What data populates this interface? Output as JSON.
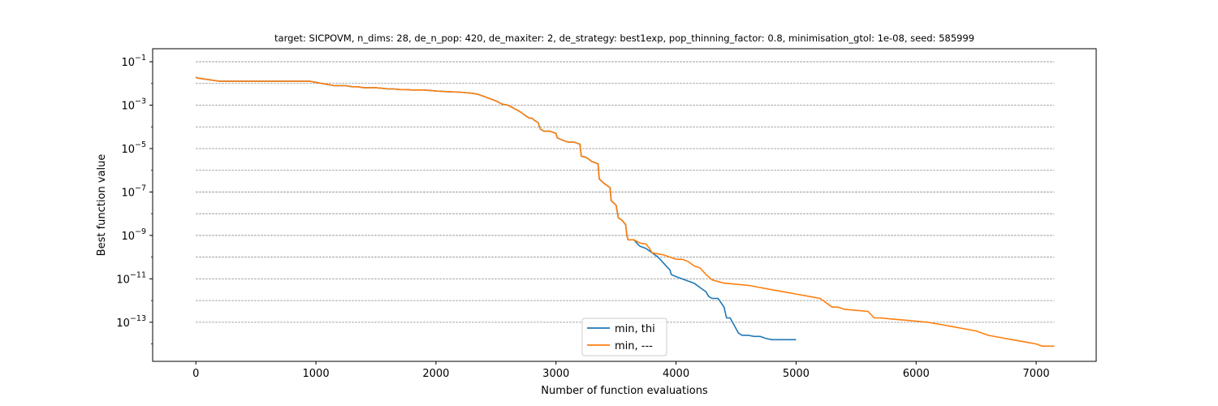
{
  "chart_data": {
    "type": "line",
    "title": "target: SICPOVM, n_dims: 28, de_n_pop: 420, de_maxiter: 2, de_strategy: best1exp, pop_thinning_factor: 0.8, minimisation_gtol: 1e-08, seed: 585999",
    "xlabel": "Number of function evaluations",
    "ylabel": "Best function value",
    "yscale": "log",
    "xlim": [
      -360,
      7500
    ],
    "ylim_log10": [
      -14.8,
      -0.4
    ],
    "x_ticks": [
      0,
      1000,
      2000,
      3000,
      4000,
      5000,
      6000,
      7000
    ],
    "y_tick_exponents": [
      -1,
      -3,
      -5,
      -7,
      -9,
      -11,
      -13
    ],
    "y_gridlines_log10": [
      -1,
      -2,
      -3,
      -4,
      -5,
      -6,
      -7,
      -8,
      -9,
      -10,
      -11,
      -12,
      -13
    ],
    "grid": "horizontal dashed",
    "legend_position": "bottom-center",
    "series": [
      {
        "name": "min, thi",
        "color": "#1f77b4",
        "x": [
          0,
          10,
          200,
          950,
          1000,
          1050,
          1100,
          1150,
          1250,
          1300,
          1350,
          1400,
          1450,
          1500,
          1550,
          1600,
          1650,
          1700,
          1750,
          1800,
          1900,
          2000,
          2100,
          2200,
          2300,
          2350,
          2400,
          2450,
          2500,
          2550,
          2600,
          2650,
          2700,
          2750,
          2780,
          2800,
          2820,
          2850,
          2870,
          2900,
          2950,
          3000,
          3010,
          3050,
          3100,
          3150,
          3200,
          3210,
          3250,
          3300,
          3350,
          3360,
          3400,
          3450,
          3460,
          3500,
          3520,
          3550,
          3580,
          3590,
          3600,
          3650,
          3680,
          3700,
          3750,
          3800,
          3850,
          3900,
          3950,
          3960,
          4000,
          4050,
          4100,
          4150,
          4200,
          4250,
          4270,
          4300,
          4350,
          4400,
          4420,
          4450,
          4500,
          4520,
          4550,
          4600,
          4650,
          4700,
          4750,
          4800,
          4850,
          4900,
          5000
        ],
        "y_log10": [
          -1.7,
          -1.75,
          -1.9,
          -1.9,
          -1.95,
          -2.0,
          -2.05,
          -2.1,
          -2.1,
          -2.15,
          -2.15,
          -2.2,
          -2.2,
          -2.2,
          -2.22,
          -2.25,
          -2.25,
          -2.28,
          -2.28,
          -2.3,
          -2.3,
          -2.35,
          -2.38,
          -2.4,
          -2.45,
          -2.5,
          -2.6,
          -2.7,
          -2.8,
          -2.95,
          -3.0,
          -3.15,
          -3.3,
          -3.5,
          -3.6,
          -3.6,
          -3.7,
          -3.8,
          -4.1,
          -4.2,
          -4.2,
          -4.3,
          -4.5,
          -4.6,
          -4.7,
          -4.7,
          -4.8,
          -5.35,
          -5.4,
          -5.6,
          -5.7,
          -6.4,
          -6.6,
          -6.8,
          -7.4,
          -7.6,
          -8.2,
          -8.3,
          -8.5,
          -9.0,
          -9.2,
          -9.2,
          -9.4,
          -9.5,
          -9.6,
          -9.8,
          -10.0,
          -10.3,
          -10.6,
          -10.8,
          -10.9,
          -11.0,
          -11.1,
          -11.2,
          -11.4,
          -11.6,
          -11.8,
          -11.9,
          -11.9,
          -12.3,
          -12.8,
          -12.8,
          -13.3,
          -13.5,
          -13.6,
          -13.6,
          -13.65,
          -13.65,
          -13.75,
          -13.8,
          -13.8,
          -13.8,
          -13.8
        ]
      },
      {
        "name": "min, ---",
        "color": "#ff7f0e",
        "x": [
          0,
          10,
          200,
          950,
          1000,
          1050,
          1100,
          1150,
          1250,
          1300,
          1350,
          1400,
          1450,
          1500,
          1550,
          1600,
          1650,
          1700,
          1750,
          1800,
          1900,
          2000,
          2100,
          2200,
          2300,
          2350,
          2400,
          2450,
          2500,
          2550,
          2600,
          2650,
          2700,
          2750,
          2780,
          2800,
          2820,
          2850,
          2870,
          2900,
          2950,
          3000,
          3010,
          3050,
          3100,
          3150,
          3200,
          3210,
          3250,
          3300,
          3350,
          3360,
          3400,
          3450,
          3460,
          3500,
          3520,
          3550,
          3580,
          3590,
          3600,
          3650,
          3700,
          3750,
          3780,
          3800,
          3850,
          3900,
          3950,
          4000,
          4050,
          4100,
          4150,
          4200,
          4250,
          4300,
          4400,
          4500,
          4600,
          4700,
          4800,
          4900,
          5000,
          5100,
          5200,
          5250,
          5300,
          5350,
          5400,
          5500,
          5600,
          5650,
          5700,
          5800,
          5900,
          6000,
          6100,
          6200,
          6300,
          6400,
          6500,
          6600,
          6700,
          6800,
          6900,
          7000,
          7050,
          7100,
          7150
        ],
        "y_log10": [
          -1.7,
          -1.75,
          -1.9,
          -1.9,
          -1.95,
          -2.0,
          -2.05,
          -2.1,
          -2.1,
          -2.15,
          -2.15,
          -2.2,
          -2.2,
          -2.2,
          -2.22,
          -2.25,
          -2.25,
          -2.28,
          -2.28,
          -2.3,
          -2.3,
          -2.35,
          -2.38,
          -2.4,
          -2.45,
          -2.5,
          -2.6,
          -2.7,
          -2.8,
          -2.95,
          -3.0,
          -3.15,
          -3.3,
          -3.5,
          -3.6,
          -3.6,
          -3.7,
          -3.8,
          -4.1,
          -4.2,
          -4.2,
          -4.3,
          -4.5,
          -4.6,
          -4.7,
          -4.7,
          -4.8,
          -5.35,
          -5.4,
          -5.6,
          -5.7,
          -6.4,
          -6.6,
          -6.8,
          -7.4,
          -7.6,
          -8.2,
          -8.3,
          -8.5,
          -9.0,
          -9.2,
          -9.2,
          -9.35,
          -9.4,
          -9.6,
          -9.8,
          -9.85,
          -9.9,
          -10.0,
          -10.1,
          -10.1,
          -10.2,
          -10.4,
          -10.5,
          -10.8,
          -11.05,
          -11.2,
          -11.25,
          -11.3,
          -11.4,
          -11.5,
          -11.6,
          -11.7,
          -11.8,
          -11.9,
          -12.1,
          -12.3,
          -12.3,
          -12.4,
          -12.45,
          -12.5,
          -12.8,
          -12.8,
          -12.85,
          -12.9,
          -12.95,
          -13.0,
          -13.1,
          -13.2,
          -13.3,
          -13.4,
          -13.6,
          -13.7,
          -13.8,
          -13.9,
          -14.0,
          -14.1,
          -14.1,
          -14.1
        ]
      }
    ]
  }
}
